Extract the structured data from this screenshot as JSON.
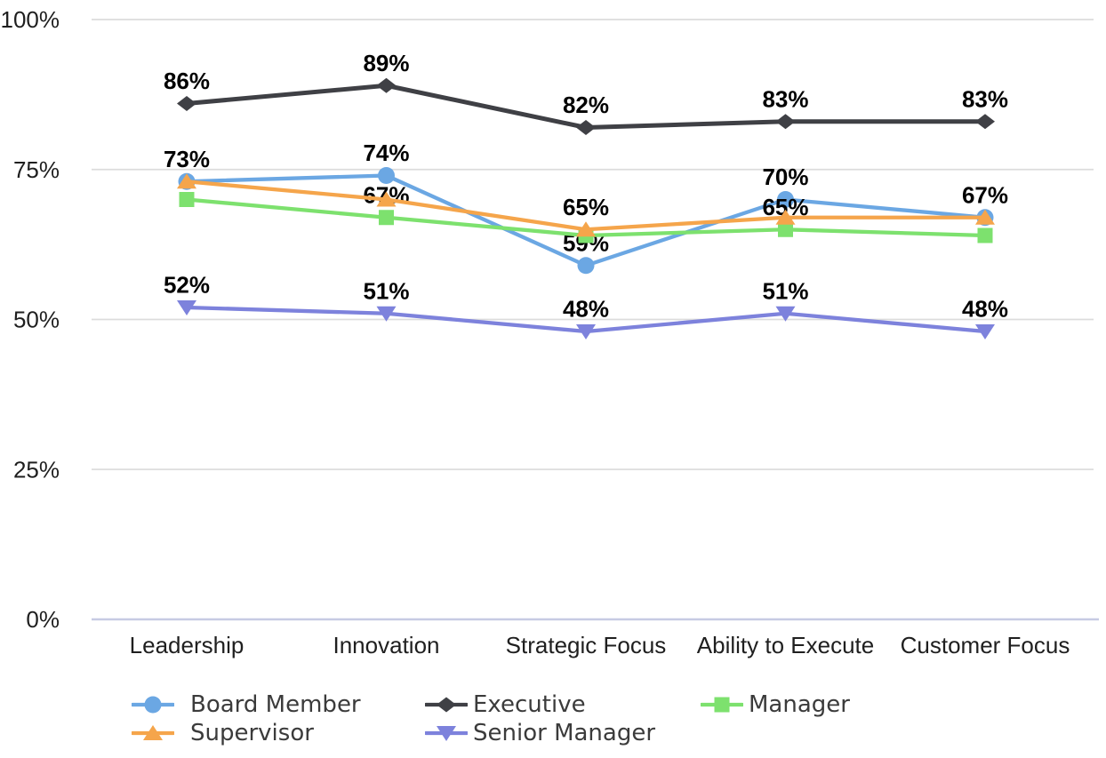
{
  "chart_data": {
    "type": "line",
    "title": "",
    "categories": [
      "Leadership",
      "Innovation",
      "Strategic Focus",
      "Ability to Execute",
      "Customer Focus"
    ],
    "series": [
      {
        "name": "Board Member",
        "color": "#6BA7E3",
        "marker": "circle",
        "values": [
          73,
          74,
          59,
          70,
          67
        ],
        "labels": [
          "73%",
          "74%",
          "59%",
          "70%",
          ""
        ]
      },
      {
        "name": "Executive",
        "color": "#3F4045",
        "marker": "diamond",
        "values": [
          86,
          89,
          82,
          83,
          83
        ],
        "labels": [
          "86%",
          "89%",
          "82%",
          "83%",
          "83%"
        ]
      },
      {
        "name": "Manager",
        "color": "#7DE16E",
        "marker": "square",
        "values": [
          70,
          67,
          64,
          65,
          64
        ],
        "labels": [
          "",
          "67%",
          "",
          "65%",
          ""
        ]
      },
      {
        "name": "Supervisor",
        "color": "#F5A54B",
        "marker": "triangle-up",
        "values": [
          73,
          70,
          65,
          67,
          67
        ],
        "labels": [
          "",
          "",
          "65%",
          "",
          "67%"
        ]
      },
      {
        "name": "Senior Manager",
        "color": "#7D82DC",
        "marker": "triangle-down",
        "values": [
          52,
          51,
          48,
          51,
          48
        ],
        "labels": [
          "52%",
          "51%",
          "48%",
          "51%",
          "48%"
        ]
      }
    ],
    "y_axis": {
      "ticks": [
        "100%",
        "75%",
        "50%",
        "25%",
        "0%"
      ],
      "tick_values": [
        100,
        75,
        50,
        25,
        0
      ],
      "min": 0,
      "max": 100
    },
    "x_axis_label": "",
    "y_axis_label": "",
    "grid": true,
    "legend_position": "bottom",
    "legend_rows": [
      [
        0,
        1,
        2
      ],
      [
        3,
        4
      ]
    ],
    "colors": {
      "gridline": "#DCDCDC",
      "axis_line": "#C7CBE3",
      "tick_text": "#1f1f1f",
      "data_label_text": "#000000",
      "legend_text": "#3b3b3b",
      "background": "#FFFFFF"
    }
  }
}
